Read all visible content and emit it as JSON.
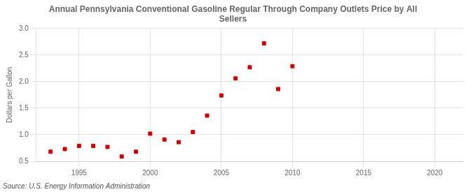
{
  "chart_data": {
    "type": "scatter",
    "title": "Annual Pennsylvania Conventional Gasoline Regular Through Company Outlets Price by All\nSellers",
    "ylabel": "Dollars per Gallon",
    "annotations": [
      "Source: U.S. Energy Information Administration"
    ],
    "x": [
      1993,
      1994,
      1995,
      1996,
      1997,
      1998,
      1999,
      2000,
      2001,
      2002,
      2003,
      2004,
      2005,
      2006,
      2007,
      2008,
      2009,
      2010
    ],
    "values": [
      0.68,
      0.73,
      0.79,
      0.79,
      0.77,
      0.59,
      0.68,
      1.02,
      0.91,
      0.86,
      1.05,
      1.36,
      1.74,
      2.06,
      2.27,
      2.72,
      1.86,
      2.29
    ],
    "color": "#cc0000",
    "marker": "square",
    "xlim": [
      1992,
      2022
    ],
    "ylim": [
      0.5,
      3.0
    ],
    "xticks": [
      1995,
      2000,
      2005,
      2010,
      2015,
      2020
    ],
    "yticks": [
      0.5,
      {
        "value": 1.0,
        "label": "1.0"
      },
      1.5,
      {
        "value": 2.0,
        "label": "2.0"
      },
      2.5,
      {
        "value": 3.0,
        "label": "3.0"
      }
    ],
    "grid": true
  }
}
